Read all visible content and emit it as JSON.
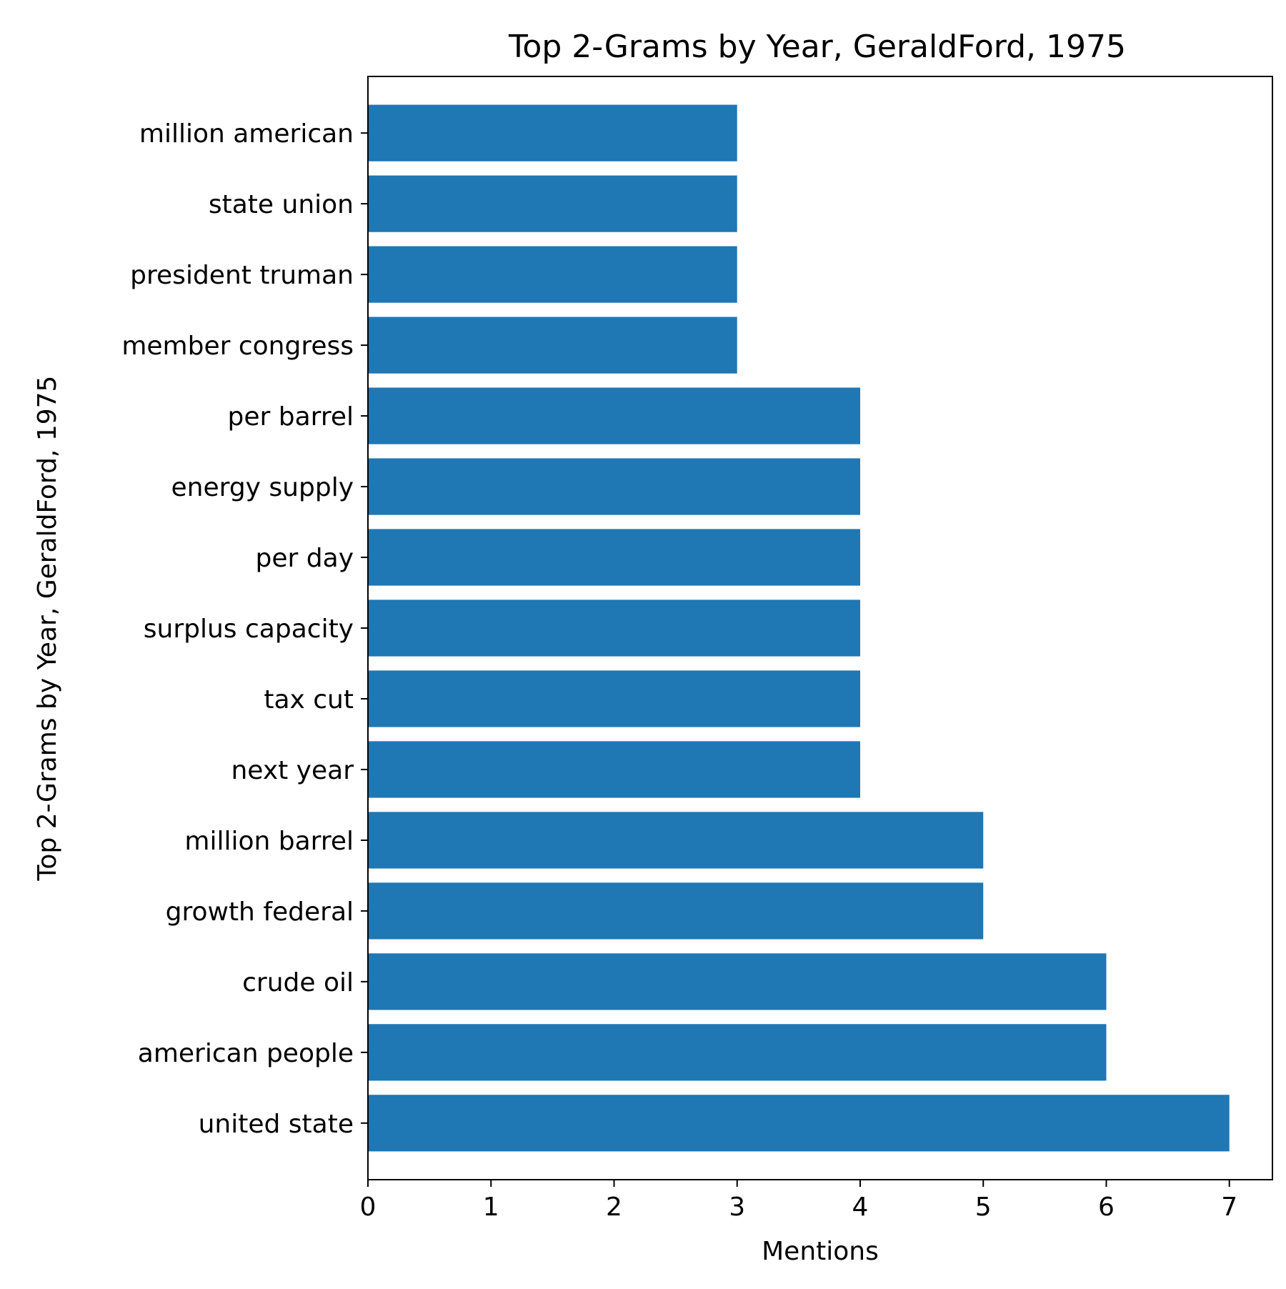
{
  "chart_data": {
    "type": "bar",
    "orientation": "horizontal",
    "title": "Top 2-Grams by Year, GeraldFord, 1975",
    "xlabel": "Mentions",
    "ylabel": "Top 2-Grams by Year, GeraldFord, 1975",
    "categories": [
      "united state",
      "american people",
      "crude oil",
      "growth federal",
      "million barrel",
      "next year",
      "tax cut",
      "surplus capacity",
      "per day",
      "energy supply",
      "per barrel",
      "member congress",
      "president truman",
      "state union",
      "million american"
    ],
    "values": [
      7,
      6,
      6,
      5,
      5,
      4,
      4,
      4,
      4,
      4,
      4,
      3,
      3,
      3,
      3
    ],
    "xlim": [
      0,
      7.35
    ],
    "xticks": [
      "0",
      "1",
      "2",
      "3",
      "4",
      "5",
      "6",
      "7"
    ],
    "bar_color": "#1f77b4",
    "grid": false,
    "legend": "none"
  }
}
